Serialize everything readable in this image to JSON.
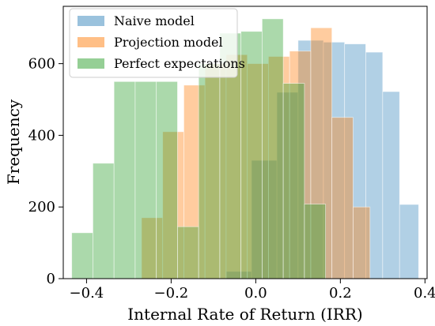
{
  "chart_data": {
    "type": "bar",
    "histogram": true,
    "xlabel": "Internal Rate of Return (IRR)",
    "ylabel": "Frequency",
    "xlim": [
      -0.455,
      0.405
    ],
    "ylim": [
      0,
      760
    ],
    "xticks": [
      -0.4,
      -0.2,
      0.0,
      0.2,
      0.4
    ],
    "xtick_labels": [
      "−0.4",
      "−0.2",
      "0.0",
      "0.2",
      "0.4"
    ],
    "yticks": [
      0,
      200,
      400,
      600
    ],
    "ytick_labels": [
      "0",
      "200",
      "400",
      "600"
    ],
    "grid": false,
    "legend": {
      "position": "top-left"
    },
    "series": [
      {
        "name": "Naive model",
        "color": "#1f77b4",
        "opacity": 0.35,
        "bins": [
          {
            "x0": -0.07,
            "x1": -0.01,
            "value": 20
          },
          {
            "x0": -0.01,
            "x1": 0.05,
            "value": 330
          },
          {
            "x0": 0.05,
            "x1": 0.1,
            "value": 520
          },
          {
            "x0": 0.1,
            "x1": 0.16,
            "value": 665
          },
          {
            "x0": 0.16,
            "x1": 0.21,
            "value": 660
          },
          {
            "x0": 0.21,
            "x1": 0.26,
            "value": 655
          },
          {
            "x0": 0.26,
            "x1": 0.3,
            "value": 632
          },
          {
            "x0": 0.3,
            "x1": 0.34,
            "value": 522
          },
          {
            "x0": 0.34,
            "x1": 0.385,
            "value": 207
          }
        ]
      },
      {
        "name": "Projection model",
        "color": "#ff7f0e",
        "opacity": 0.4,
        "bins": [
          {
            "x0": -0.27,
            "x1": -0.22,
            "value": 170
          },
          {
            "x0": -0.22,
            "x1": -0.17,
            "value": 410
          },
          {
            "x0": -0.17,
            "x1": -0.12,
            "value": 540
          },
          {
            "x0": -0.12,
            "x1": -0.07,
            "value": 600
          },
          {
            "x0": -0.07,
            "x1": -0.02,
            "value": 625
          },
          {
            "x0": -0.02,
            "x1": 0.03,
            "value": 600
          },
          {
            "x0": 0.03,
            "x1": 0.08,
            "value": 620
          },
          {
            "x0": 0.08,
            "x1": 0.13,
            "value": 635
          },
          {
            "x0": 0.13,
            "x1": 0.18,
            "value": 700
          },
          {
            "x0": 0.18,
            "x1": 0.23,
            "value": 450
          },
          {
            "x0": 0.23,
            "x1": 0.27,
            "value": 200
          }
        ]
      },
      {
        "name": "Perfect expectations",
        "color": "#2ca02c",
        "opacity": 0.4,
        "bins": [
          {
            "x0": -0.435,
            "x1": -0.385,
            "value": 128
          },
          {
            "x0": -0.385,
            "x1": -0.335,
            "value": 322
          },
          {
            "x0": -0.335,
            "x1": -0.285,
            "value": 550
          },
          {
            "x0": -0.285,
            "x1": -0.235,
            "value": 550
          },
          {
            "x0": -0.235,
            "x1": -0.185,
            "value": 550
          },
          {
            "x0": -0.185,
            "x1": -0.135,
            "value": 145
          },
          {
            "x0": -0.135,
            "x1": -0.085,
            "value": 600
          },
          {
            "x0": -0.085,
            "x1": -0.035,
            "value": 685
          },
          {
            "x0": -0.035,
            "x1": 0.015,
            "value": 690
          },
          {
            "x0": 0.015,
            "x1": 0.065,
            "value": 725
          },
          {
            "x0": 0.065,
            "x1": 0.115,
            "value": 545
          },
          {
            "x0": 0.115,
            "x1": 0.165,
            "value": 208
          }
        ]
      }
    ]
  }
}
